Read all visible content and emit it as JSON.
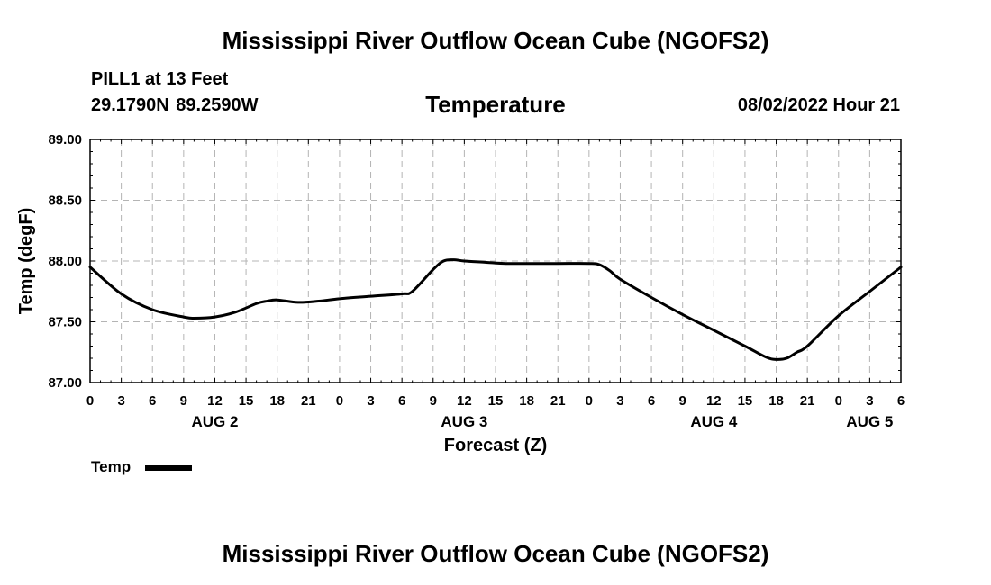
{
  "header": {
    "main_title": "Mississippi River Outflow Ocean Cube (NGOFS2)",
    "station": "PILL1 at 13 Feet",
    "coords": "29.1790N  89.2590W",
    "variable": "Temperature",
    "datetime": "08/02/2022 Hour 21"
  },
  "footer": {
    "title": "Mississippi River Outflow Ocean Cube (NGOFS2)"
  },
  "colors": {
    "line": "#000000",
    "grid": "#b4b4b4",
    "background": "#ffffff"
  },
  "chart_data": {
    "type": "line",
    "title": "Temperature",
    "xlabel": "Forecast (Z)",
    "ylabel": "Temp (degF)",
    "ylim": [
      87.0,
      89.0
    ],
    "y_ticks": [
      87.0,
      87.5,
      88.0,
      88.5,
      89.0
    ],
    "y_tick_labels": [
      "87.00",
      "87.50",
      "88.00",
      "88.50",
      "89.00"
    ],
    "xlim": [
      0,
      78
    ],
    "x_ticks": [
      0,
      3,
      6,
      9,
      12,
      15,
      18,
      21,
      24,
      27,
      30,
      33,
      36,
      39,
      42,
      45,
      48,
      51,
      54,
      57,
      60,
      63,
      66,
      69,
      72,
      75,
      78
    ],
    "x_tick_labels": [
      "0",
      "3",
      "6",
      "9",
      "12",
      "15",
      "18",
      "21",
      "0",
      "3",
      "6",
      "9",
      "12",
      "15",
      "18",
      "21",
      "0",
      "3",
      "6",
      "9",
      "12",
      "15",
      "18",
      "21",
      "0",
      "3",
      "6"
    ],
    "day_labels": [
      {
        "label": "AUG 2",
        "hour": 12
      },
      {
        "label": "AUG 3",
        "hour": 36
      },
      {
        "label": "AUG 4",
        "hour": 60
      },
      {
        "label": "AUG 5",
        "hour": 75
      }
    ],
    "grid": true,
    "legend": {
      "position": "bottom-left",
      "entries": [
        "Temp"
      ]
    },
    "series": [
      {
        "name": "Temp",
        "x": [
          0,
          3,
          6,
          9,
          10,
          12,
          14,
          16,
          17,
          18,
          20,
          22,
          24,
          27,
          30,
          31,
          33,
          34,
          35,
          36,
          38,
          40,
          42,
          45,
          48,
          49,
          50,
          51,
          54,
          57,
          60,
          63,
          65,
          66,
          67,
          68,
          69,
          72,
          75,
          78
        ],
        "y": [
          87.95,
          87.73,
          87.6,
          87.54,
          87.53,
          87.54,
          87.58,
          87.65,
          87.67,
          87.68,
          87.66,
          87.67,
          87.69,
          87.71,
          87.73,
          87.75,
          87.93,
          88.0,
          88.01,
          88.0,
          87.99,
          87.98,
          87.98,
          87.98,
          87.98,
          87.97,
          87.92,
          87.85,
          87.7,
          87.56,
          87.43,
          87.3,
          87.21,
          87.19,
          87.2,
          87.25,
          87.3,
          87.55,
          87.75,
          87.95
        ]
      }
    ]
  }
}
